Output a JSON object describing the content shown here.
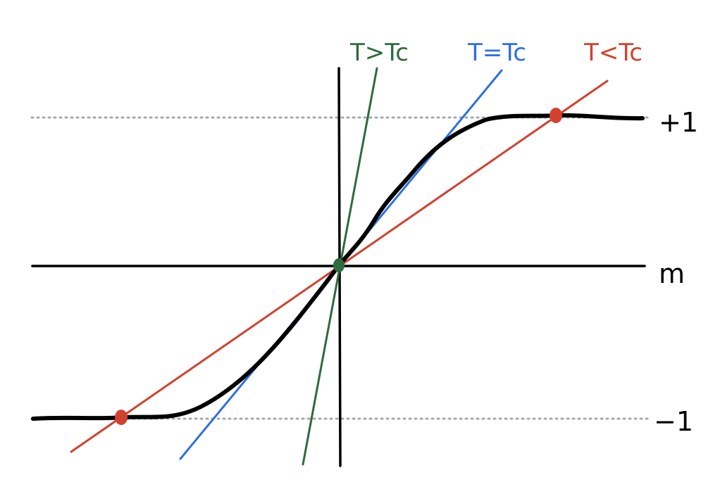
{
  "diagram": {
    "axis_label": "m",
    "level_labels": {
      "upper": "+1",
      "lower": "−1"
    },
    "lines": [
      {
        "label": "T>Tc",
        "color": "#2e6b3f"
      },
      {
        "label": "T=Tc",
        "color": "#2f6fe0"
      },
      {
        "label": "T<Tc",
        "color": "#d2412f"
      }
    ],
    "colors": {
      "curve": "#000000",
      "axes": "#000000",
      "guides": "#a8a8a8",
      "origin_point": "#2e6b3f",
      "intersection_points": "#d2412f"
    }
  }
}
